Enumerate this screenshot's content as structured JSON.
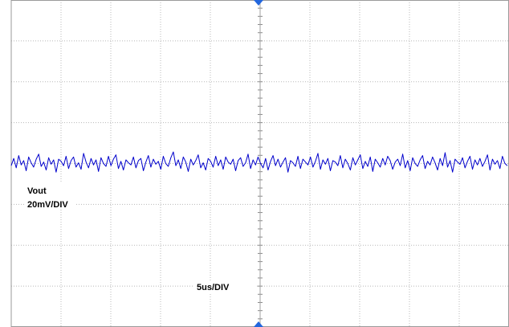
{
  "chart_data": {
    "type": "line",
    "trace_color": "#0000cc",
    "marker_color": "#2266dd",
    "grid": true,
    "grid_style": "dotted",
    "divisions": {
      "x": 10,
      "y": 8
    },
    "labels": {
      "channel": "Vout",
      "vertical_scale": "20mV/DIV",
      "horizontal_scale": "5us/DIV"
    },
    "series": [
      {
        "values": [
          -0.3,
          0.7,
          -0.6,
          1.1,
          -0.2,
          0.4,
          -1.0,
          0.9,
          0.1,
          -0.5,
          0.6,
          1.3,
          -0.4,
          0.2,
          -0.9,
          0.8,
          -0.1,
          0.5,
          -1.2,
          0.6,
          0.3,
          -0.3,
          1.0,
          -0.7,
          0.4,
          0.9,
          -0.5,
          0.1,
          -0.8,
          1.4,
          0.2,
          -0.6,
          0.7,
          -0.2,
          0.5,
          -1.1,
          0.8,
          0.0,
          -0.4,
          1.0,
          -0.3,
          0.6,
          1.2,
          -0.7,
          0.3,
          -0.9,
          0.5,
          0.1,
          -0.2,
          0.9,
          -0.6,
          0.4,
          0.7,
          -1.0,
          0.2,
          1.1,
          -0.5,
          0.6,
          -0.1,
          0.3,
          -0.8,
          1.0,
          0.0,
          -0.4,
          0.8,
          1.6,
          -0.3,
          0.5,
          -0.7,
          0.9,
          0.2,
          -1.1,
          0.6,
          -0.2,
          0.4,
          1.2,
          -0.6,
          0.1,
          -0.9,
          0.7,
          0.3,
          -0.5,
          1.0,
          -0.3,
          0.5,
          -0.8,
          0.9,
          0.2,
          -0.1,
          0.6,
          -1.0,
          0.4,
          0.8,
          -0.4,
          0.1,
          1.3,
          -0.7,
          0.5,
          -0.2,
          0.9,
          0.0,
          -0.6,
          0.7,
          -0.9,
          0.3,
          1.1,
          -0.3,
          0.6,
          -0.5,
          0.2,
          0.8,
          -1.2,
          0.4,
          0.1,
          -0.4,
          1.0,
          -0.7,
          0.6,
          0.2,
          -0.2,
          0.9,
          -0.5,
          0.3,
          1.4,
          -0.8,
          0.5,
          -0.1,
          0.7,
          -1.0,
          0.4,
          0.2,
          -0.3,
          1.1,
          -0.6,
          0.6,
          0.0,
          -0.9,
          0.8,
          -0.2,
          0.5,
          1.2,
          -0.7,
          0.3,
          -0.4,
          0.9,
          -1.1,
          0.6,
          0.1,
          -0.5,
          0.7,
          -0.2,
          1.0,
          0.4,
          -0.8,
          0.2,
          0.6,
          -0.3,
          1.3,
          -0.6,
          0.4,
          -1.0,
          0.8,
          0.0,
          -0.4,
          0.5,
          1.1,
          -0.7,
          0.3,
          -0.2,
          0.9,
          0.1,
          -0.9,
          0.7,
          -0.3,
          1.5,
          -0.5,
          0.4,
          -1.2,
          0.6,
          0.2,
          -0.1,
          0.8,
          -0.6,
          0.3,
          1.0,
          -0.8,
          0.5,
          -0.2,
          0.7,
          -0.4,
          0.3,
          1.2,
          -0.9,
          0.6,
          -0.1,
          0.4,
          -0.7,
          1.0,
          0.0,
          -0.3
        ]
      }
    ]
  }
}
